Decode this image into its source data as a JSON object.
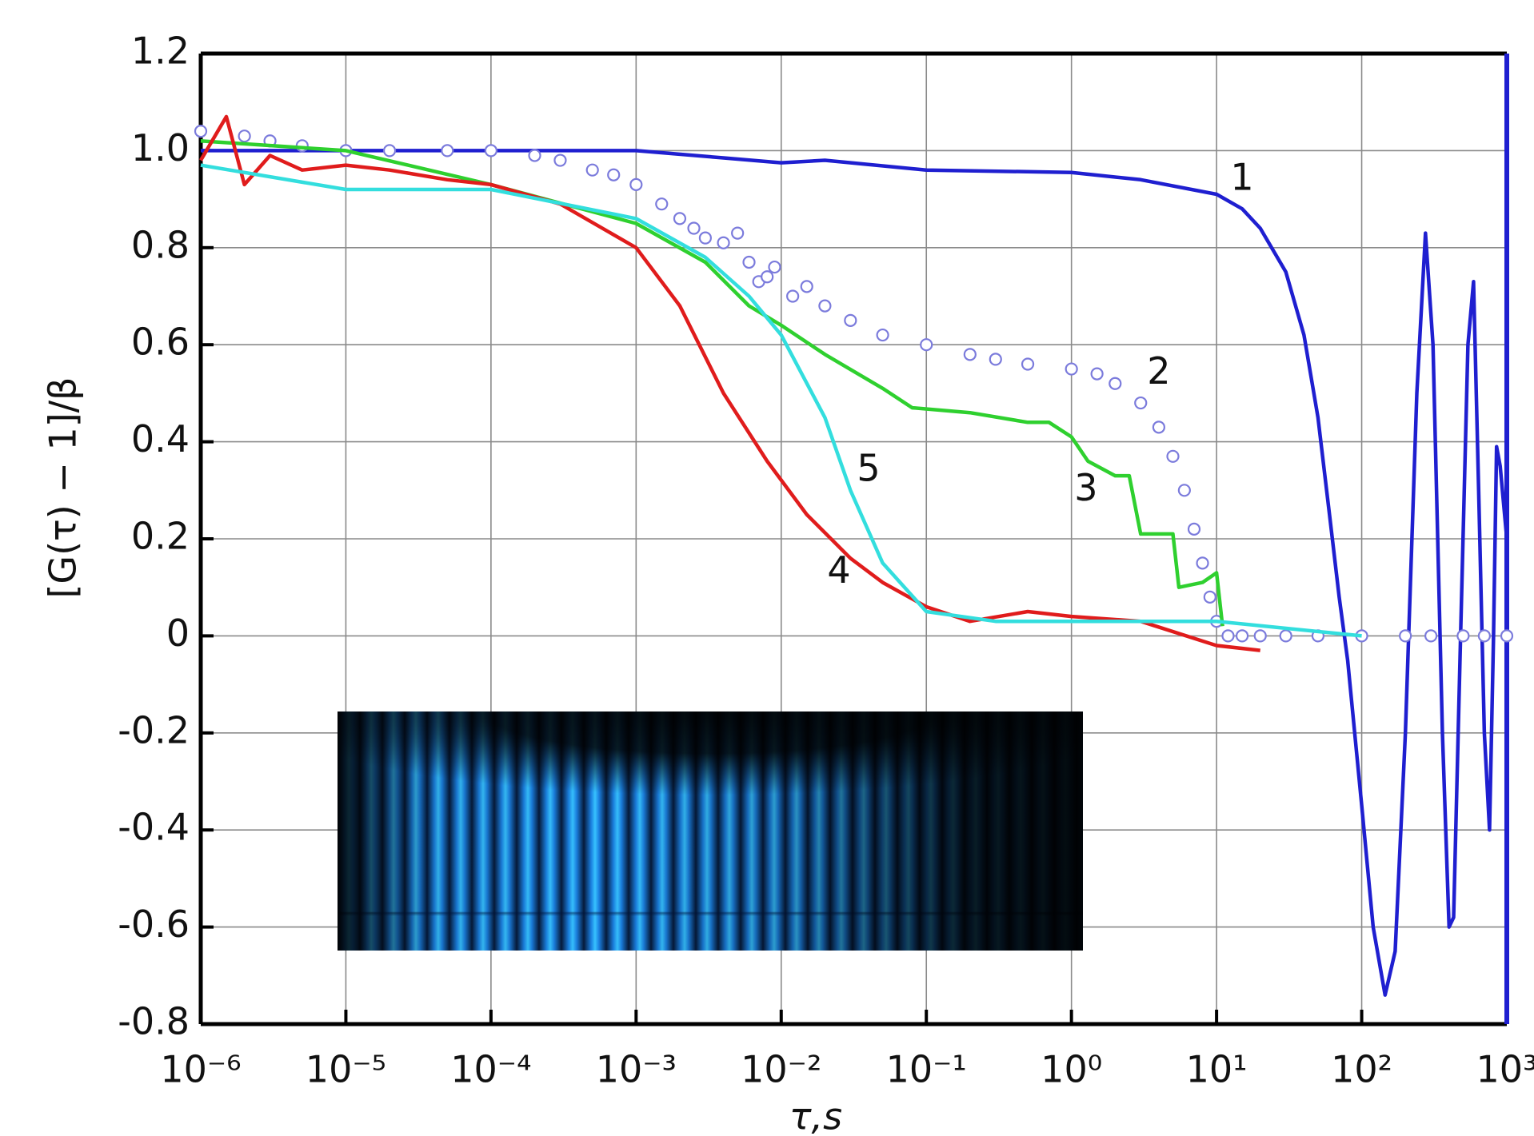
{
  "chart_data": {
    "type": "line",
    "xlabel": "τ,s",
    "ylabel": "[G(τ) − 1]/β",
    "xscale": "log",
    "xlim": [
      1e-06,
      1000
    ],
    "ylim": [
      -0.8,
      1.2
    ],
    "xticks": [
      {
        "value": 1e-06,
        "label": "10⁻⁶"
      },
      {
        "value": 1e-05,
        "label": "10⁻⁵"
      },
      {
        "value": 0.0001,
        "label": "10⁻⁴"
      },
      {
        "value": 0.001,
        "label": "10⁻³"
      },
      {
        "value": 0.01,
        "label": "10⁻²"
      },
      {
        "value": 0.1,
        "label": "10⁻¹"
      },
      {
        "value": 1,
        "label": "10⁰"
      },
      {
        "value": 10,
        "label": "10¹"
      },
      {
        "value": 100,
        "label": "10²"
      },
      {
        "value": 1000,
        "label": "10³"
      }
    ],
    "yticks": [
      1.2,
      {
        "value": 1,
        "label": "1.0"
      },
      0.8,
      0.6,
      0.4,
      0.2,
      0,
      -0.2,
      -0.4,
      -0.6,
      -0.8
    ],
    "grid": true,
    "series": [
      {
        "color": "#1f1fd0",
        "style": "line",
        "x": [
          1e-06,
          0.0001,
          0.001,
          0.004,
          0.01,
          0.02,
          0.1,
          1,
          3,
          10,
          15,
          20,
          30,
          40,
          50,
          60,
          70,
          80,
          100,
          120,
          145,
          170,
          200,
          240,
          275,
          310,
          360,
          400,
          430,
          480,
          540,
          590,
          640,
          700,
          760,
          810,
          850,
          900,
          1000
        ],
        "values": [
          1.0,
          1.0,
          1.0,
          0.985,
          0.975,
          0.98,
          0.96,
          0.955,
          0.94,
          0.91,
          0.88,
          0.84,
          0.75,
          0.62,
          0.45,
          0.25,
          0.08,
          -0.05,
          -0.35,
          -0.6,
          -0.74,
          -0.65,
          -0.2,
          0.5,
          0.83,
          0.6,
          -0.2,
          -0.6,
          -0.58,
          0.0,
          0.6,
          0.73,
          0.3,
          -0.2,
          -0.4,
          0.0,
          0.39,
          0.35,
          0.2
        ]
      },
      {
        "color": "#7b7bdc",
        "style": "markers",
        "x": [
          1e-06,
          2e-06,
          3e-06,
          5e-06,
          1e-05,
          2e-05,
          5e-05,
          0.0001,
          0.0002,
          0.0003,
          0.0005,
          0.0007,
          0.001,
          0.0015,
          0.002,
          0.0025,
          0.003,
          0.004,
          0.005,
          0.006,
          0.007,
          0.008,
          0.009,
          0.012,
          0.015,
          0.02,
          0.03,
          0.05,
          0.1,
          0.2,
          0.3,
          0.5,
          1,
          1.5,
          2,
          3,
          4,
          5,
          6,
          7,
          8,
          9,
          10,
          12,
          15,
          20,
          30,
          50,
          100,
          200,
          300,
          500,
          700,
          1000
        ],
        "values": [
          1.04,
          1.03,
          1.02,
          1.01,
          1.0,
          1.0,
          1.0,
          1.0,
          0.99,
          0.98,
          0.96,
          0.95,
          0.93,
          0.89,
          0.86,
          0.84,
          0.82,
          0.81,
          0.83,
          0.77,
          0.73,
          0.74,
          0.76,
          0.7,
          0.72,
          0.68,
          0.65,
          0.62,
          0.6,
          0.58,
          0.57,
          0.56,
          0.55,
          0.54,
          0.52,
          0.48,
          0.43,
          0.37,
          0.3,
          0.22,
          0.15,
          0.08,
          0.03,
          0.0,
          0.0,
          0.0,
          0.0,
          0.0,
          0.0,
          0.0,
          0.0,
          0.0,
          0.0,
          0.0
        ]
      },
      {
        "color": "#2fd02f",
        "style": "line",
        "x": [
          1e-06,
          1e-05,
          0.0001,
          0.001,
          0.003,
          0.006,
          0.01,
          0.02,
          0.05,
          0.08,
          0.2,
          0.5,
          0.7,
          1,
          1.3,
          2,
          2.5,
          3,
          5,
          5.5,
          8,
          10,
          11
        ],
        "values": [
          1.02,
          1.0,
          0.93,
          0.85,
          0.77,
          0.68,
          0.64,
          0.58,
          0.51,
          0.47,
          0.46,
          0.44,
          0.44,
          0.41,
          0.36,
          0.33,
          0.33,
          0.21,
          0.21,
          0.1,
          0.11,
          0.13,
          0.02
        ]
      },
      {
        "color": "#e01c1c",
        "style": "line",
        "x": [
          1e-06,
          1.5e-06,
          2e-06,
          3e-06,
          5e-06,
          1e-05,
          2e-05,
          5e-05,
          0.0001,
          0.0003,
          0.001,
          0.002,
          0.004,
          0.008,
          0.015,
          0.03,
          0.05,
          0.1,
          0.2,
          0.5,
          1,
          3,
          10,
          20
        ],
        "values": [
          0.98,
          1.07,
          0.93,
          0.99,
          0.96,
          0.97,
          0.96,
          0.94,
          0.93,
          0.89,
          0.8,
          0.68,
          0.5,
          0.36,
          0.25,
          0.16,
          0.11,
          0.06,
          0.03,
          0.05,
          0.04,
          0.03,
          -0.02,
          -0.03
        ]
      },
      {
        "color": "#33dede",
        "style": "line",
        "x": [
          1e-06,
          1e-05,
          0.0001,
          0.001,
          0.003,
          0.006,
          0.01,
          0.02,
          0.03,
          0.05,
          0.1,
          0.3,
          1,
          10,
          100
        ],
        "values": [
          0.97,
          0.92,
          0.92,
          0.86,
          0.78,
          0.7,
          0.62,
          0.45,
          0.3,
          0.15,
          0.05,
          0.03,
          0.03,
          0.03,
          0.0
        ]
      }
    ],
    "annotations": [
      {
        "text": "1",
        "x": 15,
        "y": 0.94
      },
      {
        "text": "2",
        "x": 4,
        "y": 0.54
      },
      {
        "text": "3",
        "x": 1.26,
        "y": 0.3
      },
      {
        "text": "4",
        "x": 0.025,
        "y": 0.13
      },
      {
        "text": "5",
        "x": 0.04,
        "y": 0.34
      }
    ]
  }
}
